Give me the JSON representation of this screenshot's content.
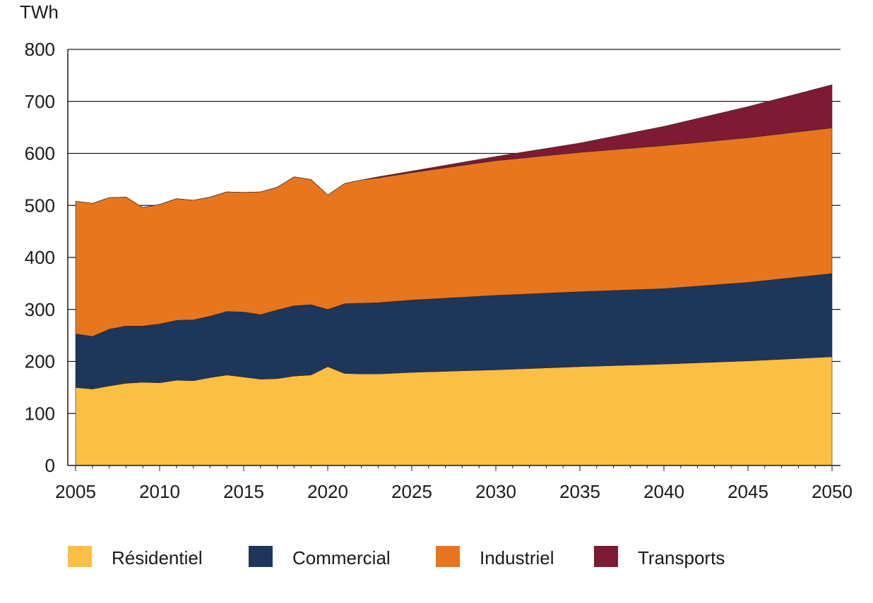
{
  "chart_data": {
    "type": "area",
    "stacked": true,
    "title": "",
    "ylabel": "TWh",
    "xlabel": "",
    "ylim": [
      0,
      800
    ],
    "yticks": [
      0,
      100,
      200,
      300,
      400,
      500,
      600,
      700,
      800
    ],
    "xlim": [
      2005,
      2050
    ],
    "xticks": [
      2005,
      2010,
      2015,
      2020,
      2025,
      2030,
      2035,
      2040,
      2045,
      2050
    ],
    "grid": true,
    "legend_position": "bottom",
    "x": [
      2005,
      2006,
      2007,
      2008,
      2009,
      2010,
      2011,
      2012,
      2013,
      2014,
      2015,
      2016,
      2017,
      2018,
      2019,
      2020,
      2021,
      2022,
      2023,
      2025,
      2030,
      2035,
      2040,
      2045,
      2050
    ],
    "series": [
      {
        "name": "Résidentiel",
        "color": "#FBBF44",
        "values": [
          150,
          147,
          153,
          158,
          160,
          159,
          164,
          163,
          169,
          174,
          170,
          166,
          167,
          172,
          174,
          190,
          177,
          176,
          176,
          179,
          184,
          190,
          195,
          201,
          209
        ]
      },
      {
        "name": "Commercial",
        "color": "#1D365A",
        "values": [
          103,
          101,
          109,
          110,
          108,
          113,
          115,
          117,
          118,
          122,
          125,
          124,
          132,
          135,
          135,
          110,
          134,
          136,
          137,
          139,
          143,
          144,
          145,
          151,
          160
        ]
      },
      {
        "name": "Industriel",
        "color": "#E8761F",
        "values": [
          255,
          256,
          253,
          248,
          228,
          230,
          234,
          230,
          229,
          230,
          230,
          236,
          236,
          248,
          241,
          220,
          231,
          237,
          240,
          245,
          259,
          268,
          275,
          278,
          280
        ]
      },
      {
        "name": "Transports",
        "color": "#7E1A33",
        "values": [
          0,
          0,
          0,
          0,
          0,
          0,
          0,
          0,
          0,
          0,
          0,
          0,
          0,
          0,
          0,
          0,
          0,
          0,
          2,
          3,
          8,
          18,
          37,
          60,
          83
        ]
      }
    ]
  }
}
